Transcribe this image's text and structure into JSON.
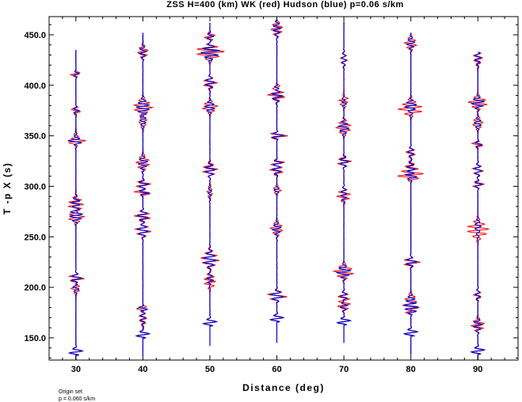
{
  "chart_data": {
    "type": "line",
    "title": "ZSS H=400 (km) WK (red) Hudson (blue) p=0.06 s/km",
    "xlabel": "Distance (deg)",
    "ylabel": "T -p X (s)",
    "xlim": [
      26,
      96
    ],
    "ylim": [
      128,
      468
    ],
    "xticks": [
      30,
      40,
      50,
      60,
      70,
      80,
      90
    ],
    "yticks": [
      150,
      200,
      250,
      300,
      350,
      400,
      450
    ],
    "ytick_labels": [
      "150.0",
      "200.0",
      "250.0",
      "300.0",
      "350.0",
      "400.0",
      "450.0"
    ],
    "series": [
      {
        "name": "WK",
        "color": "#ff0000"
      },
      {
        "name": "Hudson",
        "color": "#0000cc"
      }
    ],
    "traces": [
      {
        "distance": 30,
        "t_start": 128,
        "t_end": 435,
        "first_arrival": 136
      },
      {
        "distance": 40,
        "t_start": 132,
        "t_end": 452,
        "first_arrival": 153
      },
      {
        "distance": 50,
        "t_start": 142,
        "t_end": 462,
        "first_arrival": 165
      },
      {
        "distance": 60,
        "t_start": 145,
        "t_end": 465,
        "first_arrival": 169
      },
      {
        "distance": 70,
        "t_start": 145,
        "t_end": 463,
        "first_arrival": 166
      },
      {
        "distance": 80,
        "t_start": 133,
        "t_end": 452,
        "first_arrival": 155
      },
      {
        "distance": 90,
        "t_start": 128,
        "t_end": 433,
        "first_arrival": 137
      }
    ],
    "grid": false,
    "legend": "none"
  },
  "footnote": {
    "line1": "Origin set",
    "line2": "p = 0.060 s/km"
  }
}
